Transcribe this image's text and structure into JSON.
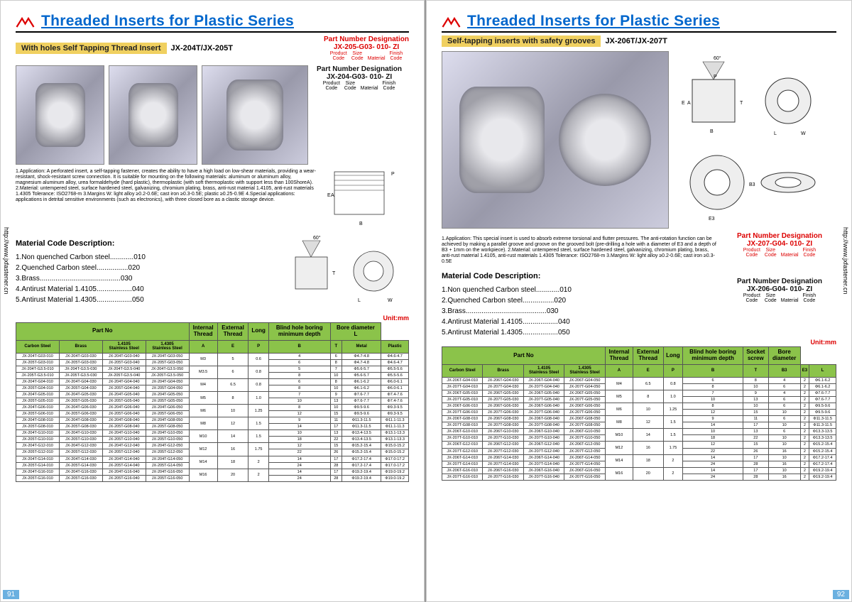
{
  "common": {
    "title": "Threaded Inserts for Plastic Series",
    "url": "http://www.jxfastener.cn",
    "unit": "Unit:mm",
    "mat_title": "Material Code Description:",
    "materials": [
      "1.Non quenched Carbon steel............010",
      "2.Quenched Carbon steel................020",
      "3.Brass.........................................030",
      "4.Antirust Material 1.4105..................040",
      "5.Antirust Material 1.4305..................050"
    ],
    "pn_labels": [
      "Product\nCode",
      "Size\nCode",
      "Material",
      "Finish\nCode"
    ]
  },
  "left": {
    "sub_yellow": "With holes Self Tapping Thread Insert",
    "sub_plain": "JX-204T/JX-205T",
    "pn1": "JX-205-G03- 010-  ZI",
    "pn2": "JX-204-G03- 010-  ZI",
    "notes": "1.Application: A perforated insert, a self-tapping fastener, creates the ability to have a high load on low-shear materials, providing a wear-resistant, shock-resistant screw connection. It is suitable for mounting on the following materials: aluminum or aluminum alloy, magnesium aluminum alloy, urea formaldehyde (hard plastic), thermoplastic (with soft thermoplastic with support less than 100ShoreA).\n2.Material: untempered steel, surface hardened steel, galvanizing, chromium plating, brass, anti-rust material 1.4105, anti-rust materials 1.4305\nTolerance: ISO2768-m\n3.Margins W: light alloy ≥0.2-0.6E; cast iron ≥0.3-0.5E; plastic ≥0.25-0.9E\n4.Special applications: applications in detrital sensitive environments (such as electronics), with three closed bore as a clastic storage device.",
    "page_num": "91",
    "headers1": [
      "Part No",
      "Internal\nThread",
      "External\nThread",
      "Long",
      "Blind hole boring\nminimum depth",
      "Bore diameter\nL"
    ],
    "headers2": [
      "Carbon Steel",
      "Brass",
      "1.4105\nStainless Steel",
      "1.4305\nStainless Steel",
      "A",
      "E",
      "P",
      "B",
      "T",
      "Metal",
      "Plastic"
    ],
    "rows": [
      [
        "JX-204T-G03-010",
        "JX-204T-G03-030",
        "JX-204T-G03-040",
        "JX-204T-G03-050",
        "M3",
        "5",
        "0.6",
        "4",
        "6",
        "Φ4.7-4.8",
        "Φ4.6-4.7"
      ],
      [
        "JX-205T-G03-010",
        "JX-205T-G03-030",
        "JX-205T-G03-040",
        "JX-205T-G03-050",
        "",
        "",
        "",
        "6",
        "8",
        "Φ4.7-4.8",
        "Φ4.6-4.7"
      ],
      [
        "JX-204T-G3.5-010",
        "JX-204T-G3.5-030",
        "JX-204T-G3.5-040",
        "JX-204T-G3.5-050",
        "M3.5",
        "6",
        "0.8",
        "5",
        "7",
        "Φ5.6-5.7",
        "Φ5.5-5.6"
      ],
      [
        "JX-205T-G3.5-010",
        "JX-205T-G3.5-030",
        "JX-205T-G3.5-040",
        "JX-205T-G3.5-050",
        "",
        "",
        "",
        "8",
        "10",
        "Φ5.6-5.7",
        "Φ5.5-5.6"
      ],
      [
        "JX-204T-G04-010",
        "JX-204T-G04-030",
        "JX-204T-G04-040",
        "JX-204T-G04-050",
        "M4",
        "6.5",
        "0.8",
        "6",
        "8",
        "Φ6.1-6.2",
        "Φ6.0-6.1"
      ],
      [
        "JX-205T-G04-010",
        "JX-205T-G04-030",
        "JX-205T-G04-040",
        "JX-205T-G04-050",
        "",
        "",
        "",
        "8",
        "10",
        "Φ6.1-6.2",
        "Φ6.0-6.1"
      ],
      [
        "JX-204T-G05-010",
        "JX-204T-G05-030",
        "JX-204T-G05-040",
        "JX-204T-G05-050",
        "M5",
        "8",
        "1.0",
        "7",
        "9",
        "Φ7.6-7.7",
        "Φ7.4-7.6"
      ],
      [
        "JX-205T-G05-010",
        "JX-205T-G05-030",
        "JX-205T-G05-040",
        "JX-205T-G05-050",
        "",
        "",
        "",
        "10",
        "13",
        "Φ7.6-7.7",
        "Φ7.4-7.6"
      ],
      [
        "JX-204T-G06-010",
        "JX-204T-G06-030",
        "JX-204T-G06-040",
        "JX-204T-G06-050",
        "M6",
        "10",
        "1.25",
        "8",
        "10",
        "Φ9.5-9.6",
        "Φ9.3-9.5"
      ],
      [
        "JX-205T-G06-010",
        "JX-205T-G06-030",
        "JX-205T-G06-040",
        "JX-205T-G06-050",
        "",
        "",
        "",
        "12",
        "15",
        "Φ9.5-9.6",
        "Φ9.3-9.5"
      ],
      [
        "JX-204T-G08-010",
        "JX-204T-G08-030",
        "JX-204T-G08-040",
        "JX-204T-G08-050",
        "M8",
        "12",
        "1.5",
        "9",
        "11",
        "Φ11.3-11.5",
        "Φ11.1-11.3"
      ],
      [
        "JX-205T-G08-010",
        "JX-205T-G08-030",
        "JX-205T-G08-040",
        "JX-205T-G08-050",
        "",
        "",
        "",
        "14",
        "17",
        "Φ11.3-11.5",
        "Φ11.1-11.3"
      ],
      [
        "JX-204T-G10-010",
        "JX-204T-G10-030",
        "JX-204T-G10-040",
        "JX-204T-G10-050",
        "M10",
        "14",
        "1.5",
        "10",
        "13",
        "Φ13.4-13.5",
        "Φ13.1-13.3"
      ],
      [
        "JX-205T-G10-010",
        "JX-205T-G10-030",
        "JX-205T-G10-040",
        "JX-205T-G10-050",
        "",
        "",
        "",
        "18",
        "22",
        "Φ13.4-13.5",
        "Φ13.1-13.3"
      ],
      [
        "JX-204T-G12-010",
        "JX-204T-G12-030",
        "JX-204T-G12-040",
        "JX-204T-G12-050",
        "M12",
        "16",
        "1.75",
        "12",
        "15",
        "Φ15.2-15.4",
        "Φ15.0-15.2"
      ],
      [
        "JX-205T-G12-010",
        "JX-205T-G12-030",
        "JX-205T-G12-040",
        "JX-205T-G12-050",
        "",
        "",
        "",
        "22",
        "26",
        "Φ15.2-15.4",
        "Φ15.0-15.2"
      ],
      [
        "JX-204T-G14-010",
        "JX-204T-G14-030",
        "JX-204T-G14-040",
        "JX-204T-G14-050",
        "M14",
        "18",
        "2",
        "14",
        "17",
        "Φ17.2-17.4",
        "Φ17.0-17.2"
      ],
      [
        "JX-205T-G14-010",
        "JX-205T-G14-030",
        "JX-205T-G14-040",
        "JX-205T-G14-050",
        "",
        "",
        "",
        "24",
        "28",
        "Φ17.2-17.4",
        "Φ17.0-17.2"
      ],
      [
        "JX-204T-G16-010",
        "JX-204T-G16-030",
        "JX-204T-G16-040",
        "JX-204T-G16-050",
        "M16",
        "20",
        "2",
        "14",
        "17",
        "Φ19.2-19.4",
        "Φ19.0-19.2"
      ],
      [
        "JX-205T-G16-010",
        "JX-205T-G16-030",
        "JX-205T-G16-040",
        "JX-205T-G16-050",
        "",
        "",
        "",
        "24",
        "28",
        "Φ19.2-19.4",
        "Φ19.0-19.2"
      ]
    ]
  },
  "right": {
    "sub_yellow": "Self-tapping inserts with safety grooves",
    "sub_plain": "JX-206T/JX-207T",
    "pn1": "JX-207-G04- 010-  ZI",
    "pn2": "JX-206-G04- 010-  ZI",
    "notes": "1.Application: This special insert is used to absorb extreme torsional and flutter pressures. The anti-rotation function can be achieved by making a parallel groove and groove on the grooved bolt (pre-drilling a hole with a diameter of E3 and a depth of B3 + 1mm on the workpiece).\n2.Material: untempered steel, surface hardened steel, galvanizing, chromium plating, brass, anti-rust material 1.4105, anti-rust materials 1.4305\nTolerance: ISO2768-m\n3.Margins W: light alloy ≥0.2-0.6E; cast iron ≥0.3-0.5E",
    "page_num": "92",
    "headers1": [
      "Part No",
      "Internal\nThread",
      "External\nThread",
      "Long",
      "Blind hole boring\nminimum depth",
      "Socket\nscrew",
      "Bore\ndiameter"
    ],
    "headers2": [
      "Carbon Steel",
      "Brass",
      "1.4105\nStainless Steel",
      "1.4305\nStainless Steel",
      "A",
      "E",
      "P",
      "B",
      "T",
      "B3",
      "E3",
      "L"
    ],
    "rows": [
      [
        "JX-206T-G04-010",
        "JX-206T-G04-030",
        "JX-206T-G04-040",
        "JX-206T-G04-050",
        "M4",
        "6.5",
        "0.8",
        "6",
        "8",
        "4",
        "2",
        "Φ6.1-6.2"
      ],
      [
        "JX-207T-G04-010",
        "JX-207T-G04-030",
        "JX-207T-G04-040",
        "JX-207T-G04-050",
        "",
        "",
        "",
        "8",
        "10",
        "6",
        "2",
        "Φ6.1-6.2"
      ],
      [
        "JX-206T-G05-010",
        "JX-206T-G05-030",
        "JX-206T-G05-040",
        "JX-206T-G05-050",
        "M5",
        "8",
        "1.0",
        "7",
        "9",
        "4",
        "2",
        "Φ7.6-7.7"
      ],
      [
        "JX-207T-G05-010",
        "JX-207T-G05-030",
        "JX-207T-G05-040",
        "JX-207T-G05-050",
        "",
        "",
        "",
        "10",
        "13",
        "6",
        "2",
        "Φ7.6-7.7"
      ],
      [
        "JX-206T-G06-010",
        "JX-206T-G06-030",
        "JX-206T-G06-040",
        "JX-206T-G06-050",
        "M6",
        "10",
        "1.25",
        "8",
        "10",
        "6",
        "2",
        "Φ9.5-9.6"
      ],
      [
        "JX-207T-G06-010",
        "JX-207T-G06-030",
        "JX-207T-G06-040",
        "JX-207T-G06-050",
        "",
        "",
        "",
        "12",
        "15",
        "10",
        "2",
        "Φ9.5-9.6"
      ],
      [
        "JX-206T-G08-010",
        "JX-206T-G08-030",
        "JX-206T-G08-040",
        "JX-206T-G08-050",
        "M8",
        "12",
        "1.5",
        "9",
        "11",
        "6",
        "2",
        "Φ11.3-11.5"
      ],
      [
        "JX-207T-G08-010",
        "JX-207T-G08-030",
        "JX-207T-G08-040",
        "JX-207T-G08-050",
        "",
        "",
        "",
        "14",
        "17",
        "10",
        "2",
        "Φ11.3-11.5"
      ],
      [
        "JX-206T-G10-010",
        "JX-206T-G10-030",
        "JX-206T-G10-040",
        "JX-206T-G10-050",
        "M10",
        "14",
        "1.5",
        "10",
        "13",
        "6",
        "2",
        "Φ13.3-13.5"
      ],
      [
        "JX-207T-G10-010",
        "JX-207T-G10-030",
        "JX-207T-G10-040",
        "JX-207T-G10-050",
        "",
        "",
        "",
        "18",
        "22",
        "10",
        "2",
        "Φ13.3-13.5"
      ],
      [
        "JX-206T-G12-010",
        "JX-206T-G12-030",
        "JX-206T-G12-040",
        "JX-206T-G12-050",
        "M12",
        "16",
        "1.75",
        "12",
        "15",
        "10",
        "2",
        "Φ15.2-15.4"
      ],
      [
        "JX-207T-G12-010",
        "JX-207T-G12-030",
        "JX-207T-G12-040",
        "JX-207T-G12-050",
        "",
        "",
        "",
        "22",
        "26",
        "16",
        "2",
        "Φ15.2-15.4"
      ],
      [
        "JX-206T-G14-010",
        "JX-206T-G14-030",
        "JX-206T-G14-040",
        "JX-206T-G14-050",
        "M14",
        "18",
        "2",
        "14",
        "17",
        "10",
        "2",
        "Φ17.2-17.4"
      ],
      [
        "JX-207T-G14-010",
        "JX-207T-G14-030",
        "JX-207T-G14-040",
        "JX-207T-G14-050",
        "",
        "",
        "",
        "24",
        "28",
        "16",
        "2",
        "Φ17.2-17.4"
      ],
      [
        "JX-206T-G16-010",
        "JX-206T-G16-030",
        "JX-206T-G16-040",
        "JX-206T-G16-050",
        "M16",
        "20",
        "2",
        "14",
        "17",
        "10",
        "2",
        "Φ19.2-19.4"
      ],
      [
        "JX-207T-G16-010",
        "JX-207T-G16-030",
        "JX-207T-G16-040",
        "JX-207T-G16-050",
        "",
        "",
        "",
        "24",
        "28",
        "16",
        "2",
        "Φ19.2-19.4"
      ]
    ]
  },
  "pn_title": "Part Number Designation",
  "colors": {
    "header_bg": "#8bc34a",
    "red": "#d00000",
    "blue": "#0066cc",
    "yellow": "#f0d060"
  }
}
